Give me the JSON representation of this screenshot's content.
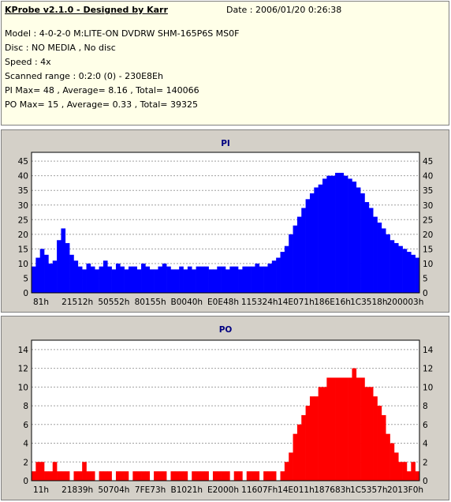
{
  "info": {
    "title": "KProbe v2.1.0 - Designed by Karr",
    "date": "Date : 2006/01/20 0:26:38",
    "model": "Model : 4-0-2-0 M:LITE-ON DVDRW SHM-165P6S MS0F",
    "disc": "Disc : NO MEDIA , No disc",
    "speed": "Speed : 4x",
    "range": "Scanned range : 0:2:0 (0) - 230E8Eh",
    "pi_stats": "PI Max= 48 , Average= 8.16 , Total= 140066",
    "po_stats": "PO Max= 15 , Average= 0.33 , Total= 39325"
  },
  "colors": {
    "pi": "#0000ff",
    "po": "#ff0000",
    "plot_bg": "#ffffff",
    "panel_bg": "#d4d0c8",
    "title": "#000080",
    "grid": "#a0a0a0"
  },
  "chart_data": [
    {
      "type": "bar",
      "title": "PI",
      "grid": true,
      "ylim": [
        0,
        48
      ],
      "yticks": [
        0,
        5,
        10,
        15,
        20,
        25,
        30,
        35,
        40,
        45
      ],
      "xticklabels": [
        "81h",
        "21512h",
        "50552h",
        "80155h",
        "B0040h",
        "E0E48h",
        "115324h",
        "14E071h",
        "186E16h",
        "1C3518h",
        "200003h"
      ],
      "series": [
        {
          "values": [
            9,
            12,
            15,
            13,
            10,
            11,
            18,
            22,
            17,
            13,
            11,
            9,
            8,
            10,
            9,
            8,
            9,
            11,
            9,
            8,
            10,
            9,
            8,
            9,
            9,
            8,
            10,
            9,
            8,
            8,
            9,
            10,
            9,
            8,
            8,
            9,
            8,
            9,
            8,
            9,
            9,
            9,
            8,
            8,
            9,
            9,
            8,
            9,
            9,
            8,
            9,
            9,
            9,
            10,
            9,
            9,
            10,
            11,
            12,
            14,
            16,
            20,
            23,
            26,
            29,
            32,
            34,
            36,
            37,
            39,
            40,
            40,
            41,
            41,
            40,
            39,
            38,
            36,
            34,
            31,
            29,
            26,
            24,
            22,
            20,
            18,
            17,
            16,
            15,
            14,
            13,
            12
          ]
        }
      ]
    },
    {
      "type": "bar",
      "title": "PO",
      "grid": true,
      "ylim": [
        0,
        15
      ],
      "yticks": [
        0,
        2,
        4,
        6,
        8,
        10,
        12,
        14
      ],
      "xticklabels": [
        "11h",
        "21839h",
        "50704h",
        "7FE73h",
        "B1021h",
        "E2000h",
        "11607Fh",
        "14E011h",
        "187683h",
        "1C5357h",
        "2013F0h"
      ],
      "series": [
        {
          "values": [
            1,
            2,
            2,
            1,
            1,
            2,
            1,
            1,
            1,
            0,
            1,
            1,
            2,
            1,
            1,
            0,
            1,
            1,
            1,
            0,
            1,
            1,
            1,
            0,
            1,
            1,
            1,
            1,
            0,
            1,
            1,
            1,
            0,
            1,
            1,
            1,
            1,
            0,
            1,
            1,
            1,
            1,
            0,
            1,
            1,
            1,
            1,
            0,
            1,
            1,
            0,
            1,
            1,
            1,
            0,
            1,
            1,
            1,
            0,
            1,
            2,
            3,
            5,
            6,
            7,
            8,
            9,
            9,
            10,
            10,
            11,
            11,
            11,
            11,
            11,
            11,
            12,
            11,
            11,
            10,
            10,
            9,
            8,
            7,
            5,
            4,
            3,
            2,
            2,
            1,
            2,
            1
          ]
        }
      ]
    }
  ]
}
